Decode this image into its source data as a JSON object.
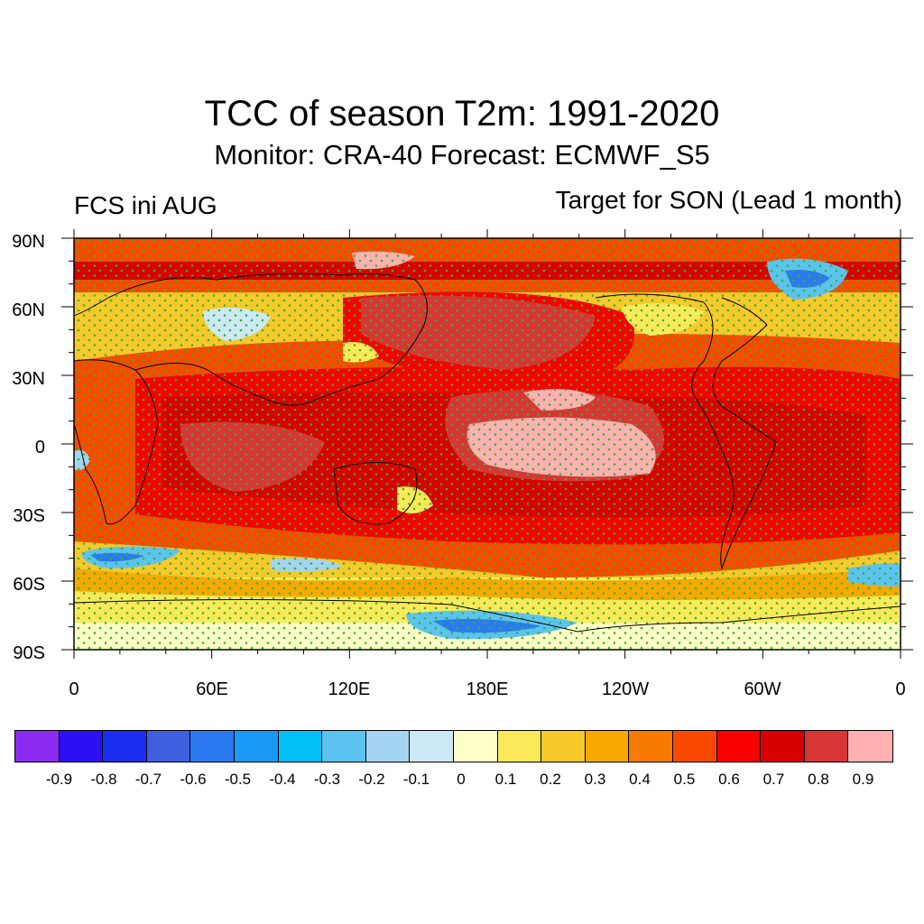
{
  "title": "TCC of season T2m: 1991-2020",
  "subtitle": "Monitor: CRA-40   Forecast: ECMWF_S5",
  "left_label": "FCS ini AUG",
  "right_label": "Target for SON (Lead 1 month)",
  "map": {
    "projection": "cylindrical equidistant, centered on 180",
    "lat_ticks": [
      "90N",
      "60N",
      "30N",
      "0",
      "30S",
      "60S",
      "90S"
    ],
    "lon_ticks": [
      "0",
      "60E",
      "120E",
      "180E",
      "120W",
      "60W",
      "0"
    ],
    "stipple_color": "#2db82d",
    "coastline_color": "#000000"
  },
  "colorbar": {
    "colors": [
      "#8c2bf0",
      "#2b0ff5",
      "#1a2df0",
      "#3f5fe0",
      "#2b7af0",
      "#1a9af5",
      "#00bff5",
      "#5cc3f0",
      "#a5d4f0",
      "#cde8f7",
      "#ffffc8",
      "#fce95a",
      "#f9c82a",
      "#f8a800",
      "#f87a00",
      "#f94a00",
      "#f90000",
      "#d80000",
      "#d83535",
      "#ffb0b0"
    ],
    "labels": [
      "-0.9",
      "-0.8",
      "-0.7",
      "-0.6",
      "-0.5",
      "-0.4",
      "-0.3",
      "-0.2",
      "-0.1",
      "0",
      "0.1",
      "0.2",
      "0.3",
      "0.4",
      "0.5",
      "0.6",
      "0.7",
      "0.8",
      "0.9"
    ]
  }
}
